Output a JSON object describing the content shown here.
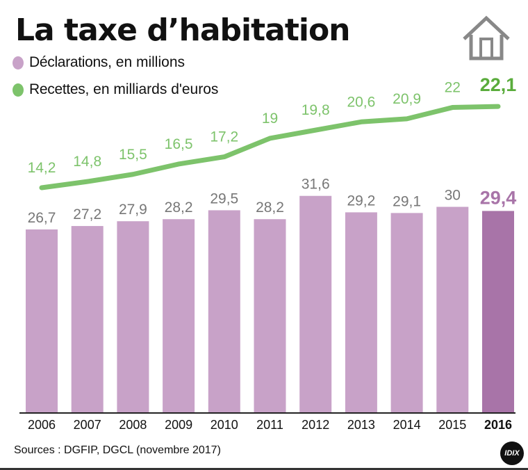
{
  "title": "La taxe d’habitation",
  "legend": [
    {
      "bold": "Déclarations",
      "rest": ", en millions",
      "color": "#c8a2c8"
    },
    {
      "bold": "Recettes",
      "rest": ", en milliards d'euros",
      "color": "#7dc36b"
    }
  ],
  "source": "Sources : DGFIP, DGCL (novembre 2017)",
  "logo": "IDIX",
  "icon": "house-icon",
  "chart_data": {
    "type": "bar+line",
    "categories": [
      "2006",
      "2007",
      "2008",
      "2009",
      "2010",
      "2011",
      "2012",
      "2013",
      "2014",
      "2015",
      "2016"
    ],
    "series": [
      {
        "name": "Déclarations, en millions",
        "type": "bar",
        "values": [
          26.7,
          27.2,
          27.9,
          28.2,
          29.5,
          28.2,
          31.6,
          29.2,
          29.1,
          30,
          29.4
        ],
        "labels": [
          "26,7",
          "27,2",
          "27,9",
          "28,2",
          "29,5",
          "28,2",
          "31,6",
          "29,2",
          "29,1",
          "30",
          "29,4"
        ],
        "color": "#c8a2c8",
        "highlight_color": "#a874a8",
        "label_color": "#777777"
      },
      {
        "name": "Recettes, en milliards d'euros",
        "type": "line",
        "values": [
          14.2,
          14.8,
          15.5,
          16.5,
          17.2,
          19,
          19.8,
          20.6,
          20.9,
          22,
          22.1
        ],
        "labels": [
          "14,2",
          "14,8",
          "15,5",
          "16,5",
          "17,2",
          "19",
          "19,8",
          "20,6",
          "20,9",
          "22",
          "22,1"
        ],
        "color": "#7dc36b",
        "highlight_color": "#5aac3c"
      }
    ],
    "highlight_category": "2016",
    "grid": false
  }
}
